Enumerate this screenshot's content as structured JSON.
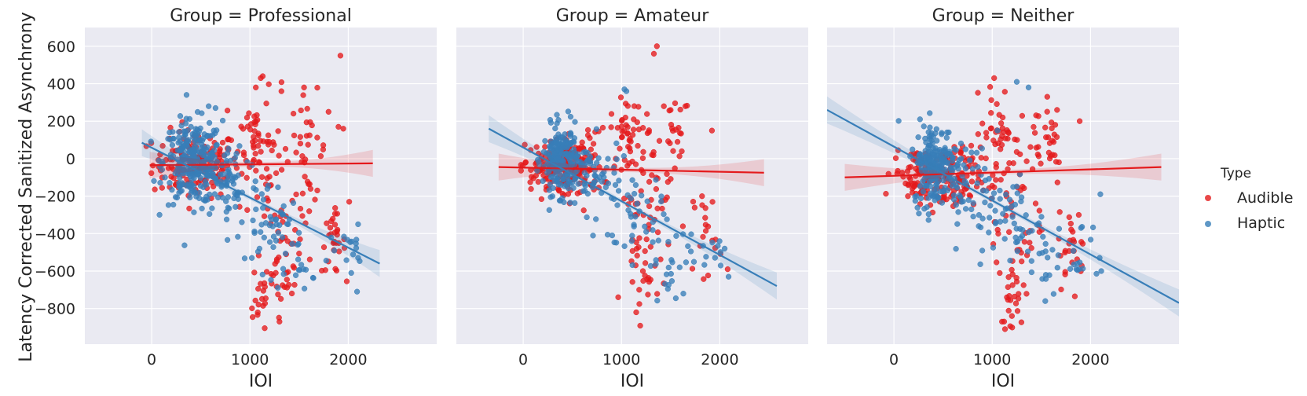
{
  "chart_data": {
    "type": "scatter",
    "ylabel": "Latency Corrected Sanitized Asynchrony",
    "xlabel": "IOI",
    "x_ticks": [
      0,
      1000,
      2000
    ],
    "y_ticks": [
      600,
      400,
      200,
      0,
      -200,
      -400,
      -600,
      -800
    ],
    "xlim": [
      -680,
      2900
    ],
    "ylim": [
      -990,
      700
    ],
    "grid": true,
    "legend": {
      "title": "Type",
      "position": "right",
      "entries": [
        {
          "name": "Audible",
          "color": "#e41a1c"
        },
        {
          "name": "Haptic",
          "color": "#377eb8"
        }
      ]
    },
    "colors": {
      "Audible": "#e41a1c",
      "Haptic": "#377eb8",
      "background": "#eaeaf2",
      "grid": "#ffffff"
    },
    "facets": [
      {
        "title": "Group = Professional",
        "regression": {
          "Audible": {
            "x": [
              -20,
              2250
            ],
            "y": [
              -35,
              -25
            ]
          },
          "Haptic": {
            "x": [
              -100,
              2320
            ],
            "y": [
              85,
              -560
            ]
          }
        },
        "clusters": {
          "Audible": [
            {
              "cx": 450,
              "cy": -30,
              "sx": 220,
              "sy": 90,
              "n": 150
            },
            {
              "cx": 1050,
              "cy": 130,
              "sx": 80,
              "sy": 110,
              "n": 35
            },
            {
              "cx": 1200,
              "cy": -100,
              "sx": 150,
              "sy": 220,
              "n": 45
            },
            {
              "cx": 1350,
              "cy": -550,
              "sx": 90,
              "sy": 140,
              "n": 40
            },
            {
              "cx": 1600,
              "cy": 50,
              "sx": 90,
              "sy": 150,
              "n": 30
            },
            {
              "cx": 1850,
              "cy": -450,
              "sx": 60,
              "sy": 80,
              "n": 30
            },
            {
              "cx": 1100,
              "cy": -750,
              "sx": 50,
              "sy": 80,
              "n": 15
            }
          ],
          "Haptic": [
            {
              "cx": 420,
              "cy": -20,
              "sx": 150,
              "sy": 110,
              "n": 260
            },
            {
              "cx": 800,
              "cy": -120,
              "sx": 150,
              "sy": 110,
              "n": 60
            },
            {
              "cx": 1200,
              "cy": -350,
              "sx": 150,
              "sy": 110,
              "n": 40
            },
            {
              "cx": 1500,
              "cy": -500,
              "sx": 150,
              "sy": 100,
              "n": 25
            },
            {
              "cx": 2000,
              "cy": -520,
              "sx": 80,
              "sy": 80,
              "n": 12
            }
          ]
        },
        "outliers": {
          "Audible": [
            [
              1920,
              550
            ],
            [
              1110,
              430
            ],
            [
              1130,
              440
            ],
            [
              1320,
              360
            ],
            [
              1550,
              380
            ],
            [
              1060,
              380
            ],
            [
              1800,
              250
            ],
            [
              1900,
              170
            ],
            [
              1950,
              160
            ],
            [
              2010,
              -230
            ],
            [
              1150,
              -905
            ],
            [
              1300,
              -870
            ]
          ],
          "Haptic": [
            [
              2100,
              -350
            ],
            [
              2090,
              -710
            ],
            [
              650,
              270
            ],
            [
              580,
              280
            ]
          ]
        }
      },
      {
        "title": "Group = Amateur",
        "regression": {
          "Audible": {
            "x": [
              -250,
              2450
            ],
            "y": [
              -45,
              -75
            ]
          },
          "Haptic": {
            "x": [
              -350,
              2580
            ],
            "y": [
              160,
              -680
            ]
          }
        },
        "clusters": {
          "Audible": [
            {
              "cx": 250,
              "cy": -60,
              "sx": 140,
              "sy": 70,
              "n": 90
            },
            {
              "cx": 550,
              "cy": -40,
              "sx": 130,
              "sy": 90,
              "n": 110
            },
            {
              "cx": 1050,
              "cy": 130,
              "sx": 80,
              "sy": 90,
              "n": 40
            },
            {
              "cx": 1250,
              "cy": -200,
              "sx": 130,
              "sy": 220,
              "n": 50
            },
            {
              "cx": 1550,
              "cy": 100,
              "sx": 100,
              "sy": 130,
              "n": 25
            },
            {
              "cx": 1250,
              "cy": -600,
              "sx": 100,
              "sy": 80,
              "n": 20
            },
            {
              "cx": 1850,
              "cy": -380,
              "sx": 60,
              "sy": 120,
              "n": 20
            }
          ],
          "Haptic": [
            {
              "cx": 380,
              "cy": -10,
              "sx": 90,
              "sy": 90,
              "n": 200
            },
            {
              "cx": 700,
              "cy": -100,
              "sx": 150,
              "sy": 100,
              "n": 50
            },
            {
              "cx": 1100,
              "cy": -300,
              "sx": 160,
              "sy": 120,
              "n": 40
            },
            {
              "cx": 1500,
              "cy": -550,
              "sx": 150,
              "sy": 100,
              "n": 25
            },
            {
              "cx": 1950,
              "cy": -480,
              "sx": 80,
              "sy": 60,
              "n": 10
            }
          ]
        },
        "outliers": {
          "Audible": [
            [
              1360,
              600
            ],
            [
              1330,
              560
            ],
            [
              1650,
              280
            ],
            [
              1920,
              150
            ],
            [
              1150,
              -820
            ],
            [
              1180,
              -700
            ],
            [
              2080,
              -590
            ]
          ],
          "Haptic": [
            [
              1030,
              370
            ],
            [
              1050,
              360
            ],
            [
              2090,
              -630
            ],
            [
              2050,
              -480
            ]
          ]
        }
      },
      {
        "title": "Group = Neither",
        "regression": {
          "Audible": {
            "x": [
              -500,
              2720
            ],
            "y": [
              -100,
              -45
            ]
          },
          "Haptic": {
            "x": [
              -680,
              2900
            ],
            "y": [
              260,
              -770
            ]
          }
        },
        "clusters": {
          "Audible": [
            {
              "cx": 250,
              "cy": -80,
              "sx": 130,
              "sy": 70,
              "n": 80
            },
            {
              "cx": 600,
              "cy": -120,
              "sx": 140,
              "sy": 90,
              "n": 100
            },
            {
              "cx": 1050,
              "cy": 150,
              "sx": 80,
              "sy": 110,
              "n": 40
            },
            {
              "cx": 1250,
              "cy": -300,
              "sx": 130,
              "sy": 250,
              "n": 50
            },
            {
              "cx": 1550,
              "cy": 100,
              "sx": 100,
              "sy": 120,
              "n": 30
            },
            {
              "cx": 1200,
              "cy": -700,
              "sx": 70,
              "sy": 100,
              "n": 20
            },
            {
              "cx": 1820,
              "cy": -480,
              "sx": 70,
              "sy": 100,
              "n": 25
            }
          ],
          "Haptic": [
            {
              "cx": 420,
              "cy": -30,
              "sx": 110,
              "sy": 110,
              "n": 200
            },
            {
              "cx": 800,
              "cy": -150,
              "sx": 160,
              "sy": 110,
              "n": 50
            },
            {
              "cx": 1200,
              "cy": -350,
              "sx": 160,
              "sy": 130,
              "n": 40
            },
            {
              "cx": 1550,
              "cy": -520,
              "sx": 150,
              "sy": 110,
              "n": 25
            },
            {
              "cx": 1950,
              "cy": -500,
              "sx": 80,
              "sy": 80,
              "n": 10
            }
          ]
        },
        "outliers": {
          "Audible": [
            [
              1020,
              430
            ],
            [
              1560,
              330
            ],
            [
              1660,
              260
            ],
            [
              1890,
              200
            ],
            [
              1880,
              -300
            ],
            [
              1130,
              -910
            ],
            [
              1200,
              -840
            ],
            [
              1100,
              -870
            ]
          ],
          "Haptic": [
            [
              1250,
              410
            ],
            [
              1370,
              380
            ],
            [
              2100,
              -190
            ],
            [
              2110,
              -600
            ],
            [
              1540,
              -760
            ]
          ]
        }
      }
    ]
  }
}
